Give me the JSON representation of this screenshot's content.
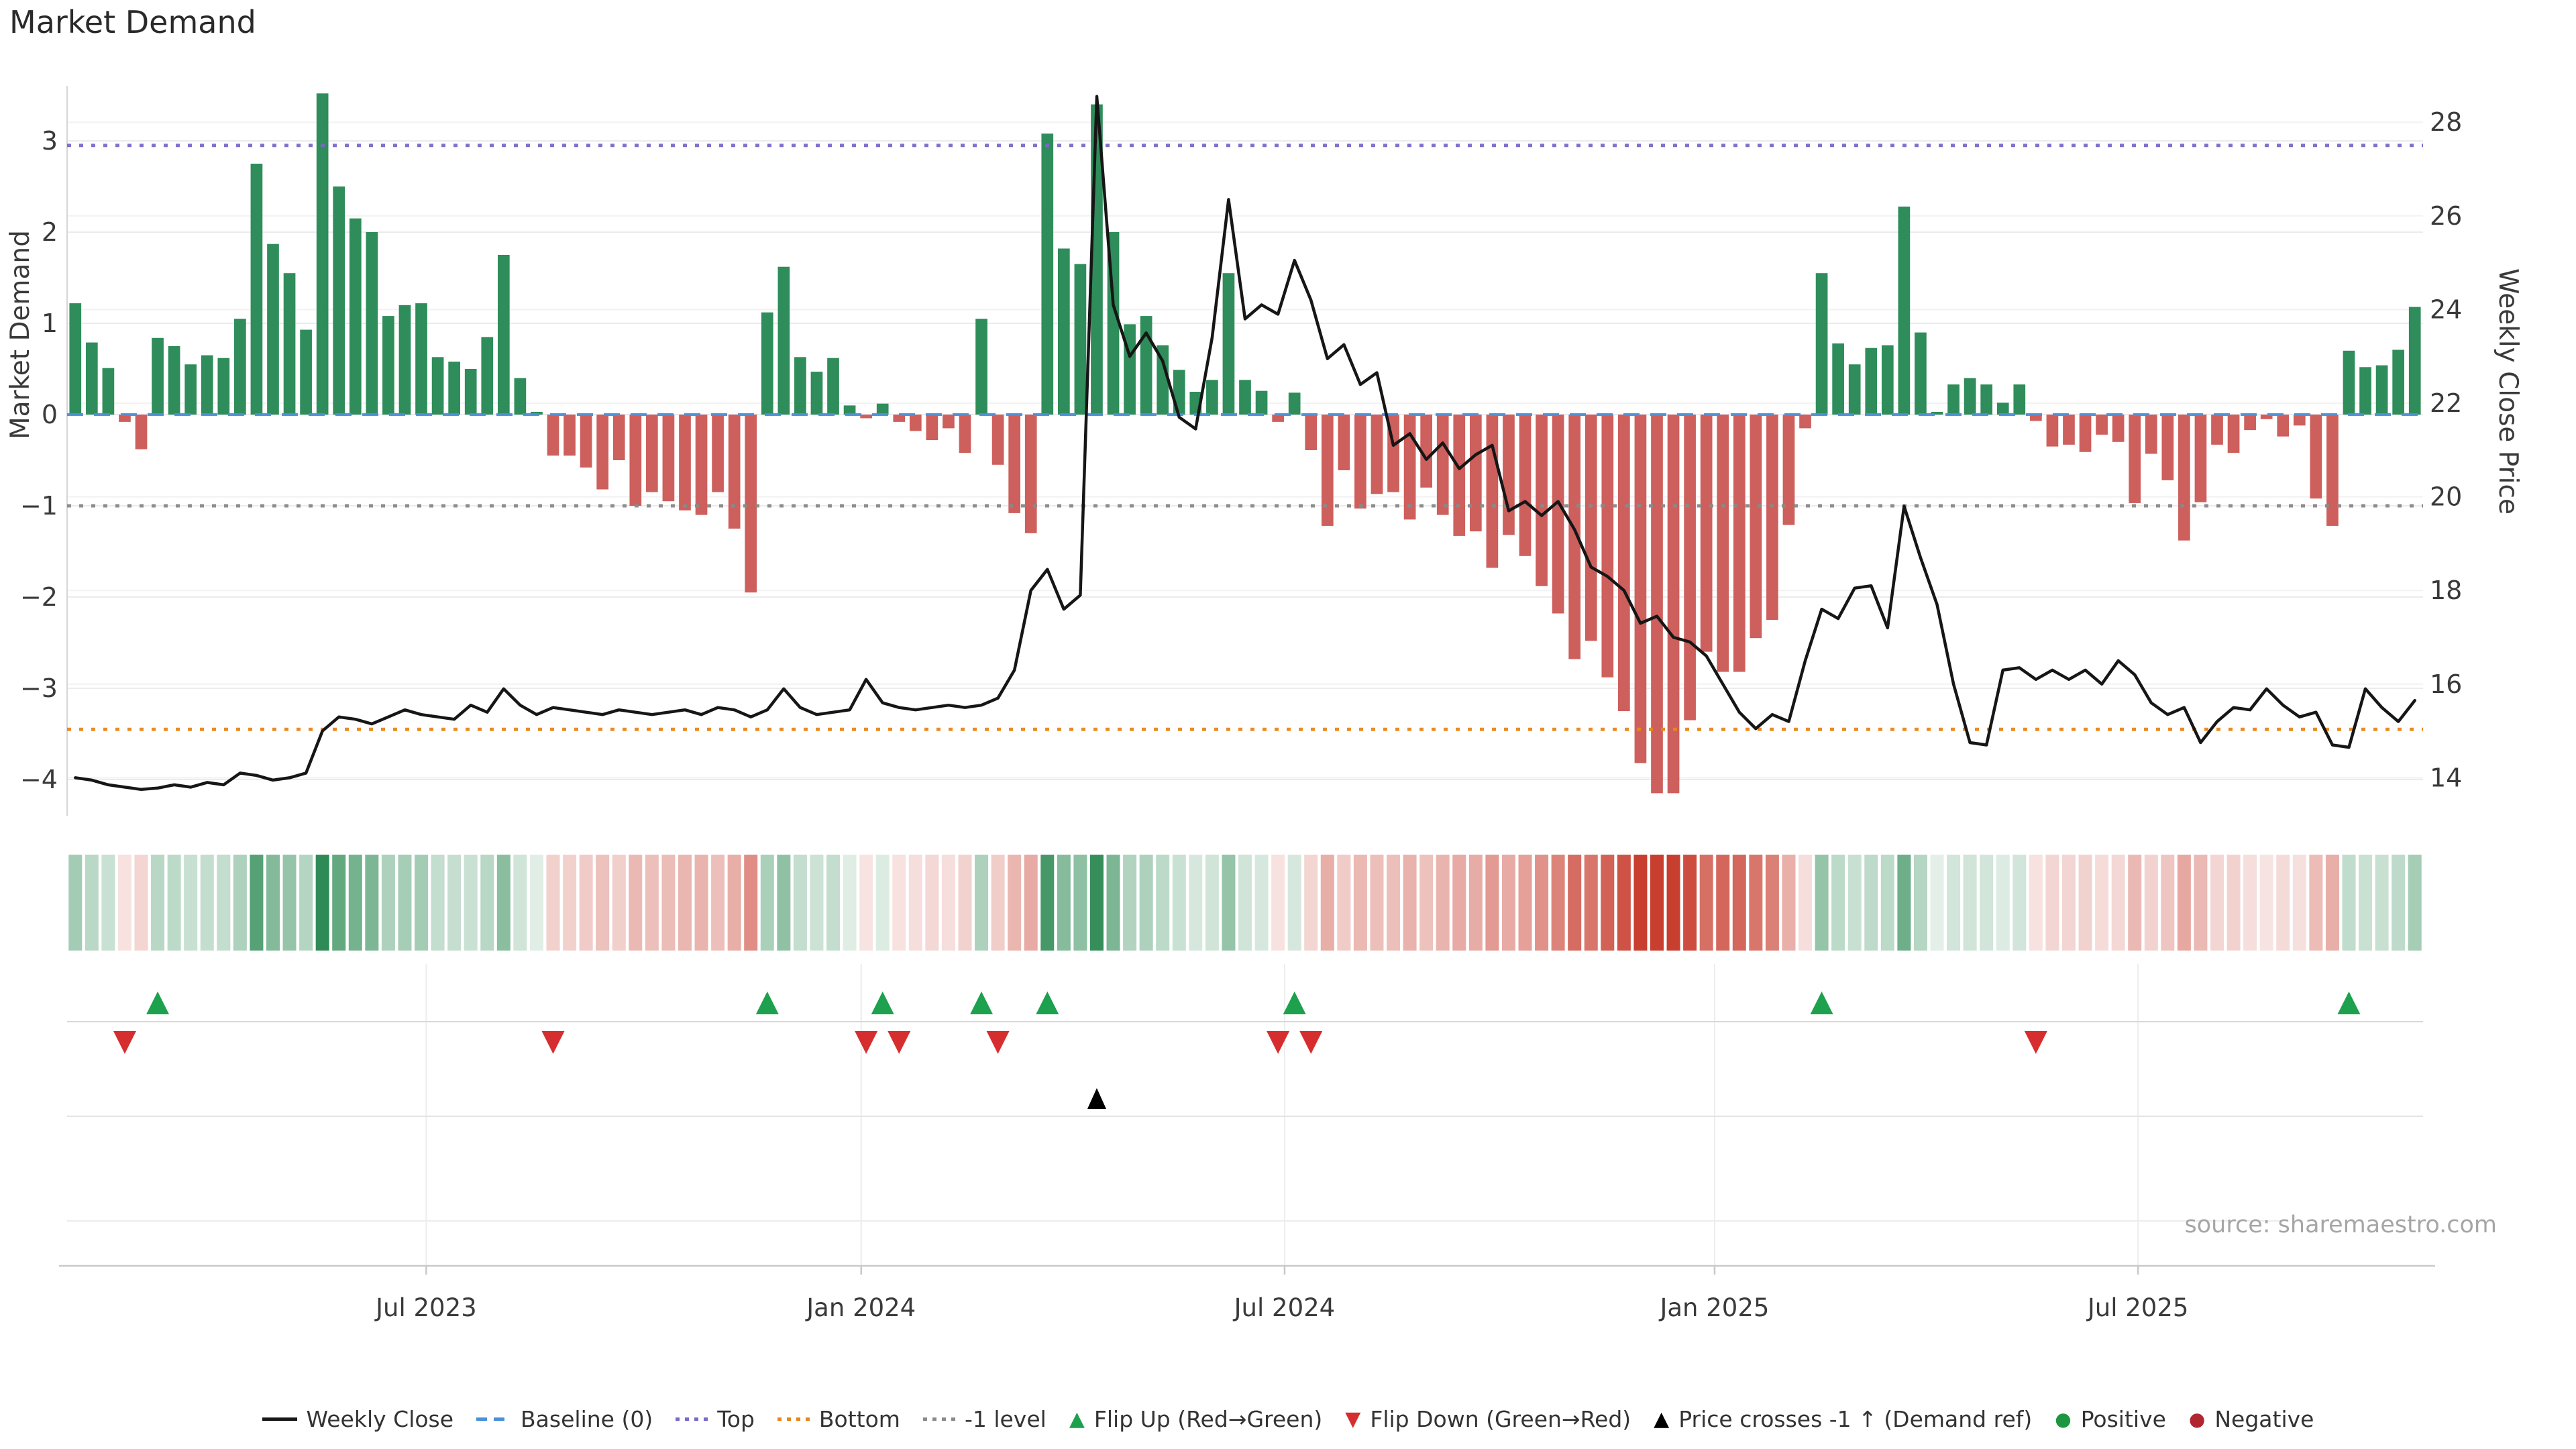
{
  "title": "Market Demand",
  "source": "source: sharemaestro.com",
  "chart_data": {
    "type": "bar",
    "subtype": "combo-bar-line-heatmap",
    "n_points": 143,
    "x_unit": "week",
    "left_axis": {
      "title": "Market Demand",
      "ticks": [
        3,
        2,
        1,
        0,
        -1,
        -2,
        -3,
        -4
      ],
      "range": [
        -4.4,
        3.6
      ]
    },
    "right_axis": {
      "title": "Weekly Close Price",
      "ticks": [
        28,
        26,
        24,
        22,
        20,
        18,
        16,
        14
      ],
      "range": [
        13.2,
        28.8
      ]
    },
    "x_axis": {
      "ticks": [
        {
          "label": "Jul 2023",
          "pos": 21.3
        },
        {
          "label": "Jan 2024",
          "pos": 47.7
        },
        {
          "label": "Jul 2024",
          "pos": 73.4
        },
        {
          "label": "Jan 2025",
          "pos": 99.5
        },
        {
          "label": "Jul 2025",
          "pos": 125.2
        }
      ]
    },
    "series": [
      {
        "name": "Market Demand",
        "type": "bar",
        "axis": "left",
        "positive_color": "#2e8d5a",
        "negative_color": "#cd5f5c",
        "values": [
          1.22,
          0.79,
          0.51,
          -0.08,
          -0.38,
          0.84,
          0.75,
          0.55,
          0.65,
          0.62,
          1.05,
          2.75,
          1.87,
          1.55,
          0.93,
          3.52,
          2.5,
          2.15,
          2.0,
          1.08,
          1.2,
          1.22,
          0.63,
          0.58,
          0.5,
          0.85,
          1.75,
          0.4,
          0.03,
          -0.45,
          -0.45,
          -0.58,
          -0.82,
          -0.5,
          -1.0,
          -0.85,
          -0.95,
          -1.05,
          -1.1,
          -0.85,
          -1.25,
          -1.95,
          1.12,
          1.62,
          0.63,
          0.47,
          0.62,
          0.1,
          -0.04,
          0.12,
          -0.08,
          -0.18,
          -0.28,
          -0.15,
          -0.42,
          1.05,
          -0.55,
          -1.08,
          -1.3,
          3.08,
          1.82,
          1.65,
          3.4,
          2.0,
          0.99,
          1.08,
          0.76,
          0.49,
          0.25,
          0.38,
          1.55,
          0.38,
          0.26,
          -0.08,
          0.24,
          -0.39,
          -1.22,
          -0.61,
          -1.03,
          -0.87,
          -0.85,
          -1.15,
          -0.8,
          -1.1,
          -1.33,
          -1.28,
          -1.68,
          -1.32,
          -1.55,
          -1.88,
          -2.18,
          -2.68,
          -2.48,
          -2.88,
          -3.25,
          -3.82,
          -4.15,
          -4.15,
          -3.35,
          -2.6,
          -2.82,
          -2.82,
          -2.45,
          -2.25,
          -1.21,
          -0.15,
          1.55,
          0.78,
          0.55,
          0.73,
          0.76,
          2.28,
          0.9,
          0.02,
          0.33,
          0.4,
          0.33,
          0.13,
          0.33,
          -0.07,
          -0.35,
          -0.33,
          -0.41,
          -0.22,
          -0.3,
          -0.97,
          -0.43,
          -0.72,
          -1.38,
          -0.96,
          -0.33,
          -0.42,
          -0.17,
          -0.05,
          -0.24,
          -0.12,
          -0.92,
          -1.22,
          0.7,
          0.52,
          0.54,
          0.71,
          1.18
        ]
      },
      {
        "name": "Weekly Close",
        "type": "line",
        "axis": "right",
        "color": "#161616",
        "values": [
          14.0,
          13.95,
          13.85,
          13.8,
          13.75,
          13.78,
          13.85,
          13.8,
          13.9,
          13.85,
          14.1,
          14.05,
          13.95,
          14.0,
          14.1,
          15.0,
          15.3,
          15.25,
          15.15,
          15.3,
          15.45,
          15.35,
          15.3,
          15.25,
          15.55,
          15.4,
          15.9,
          15.55,
          15.35,
          15.5,
          15.45,
          15.4,
          15.35,
          15.45,
          15.4,
          15.35,
          15.4,
          15.45,
          15.35,
          15.5,
          15.45,
          15.3,
          15.45,
          15.9,
          15.5,
          15.35,
          15.4,
          15.45,
          16.1,
          15.6,
          15.5,
          15.45,
          15.5,
          15.55,
          15.5,
          15.55,
          15.7,
          16.3,
          18.0,
          18.45,
          17.6,
          17.9,
          28.55,
          24.1,
          23.0,
          23.5,
          22.9,
          21.7,
          21.45,
          23.4,
          26.35,
          23.8,
          24.1,
          23.9,
          25.05,
          24.2,
          22.95,
          23.25,
          22.4,
          22.65,
          21.1,
          21.35,
          20.8,
          21.15,
          20.6,
          20.9,
          21.1,
          19.7,
          19.9,
          19.6,
          19.9,
          19.3,
          18.5,
          18.3,
          18.0,
          17.3,
          17.45,
          17.0,
          16.9,
          16.6,
          16.0,
          15.4,
          15.05,
          15.35,
          15.2,
          16.5,
          17.6,
          17.4,
          18.05,
          18.1,
          17.2,
          19.8,
          18.7,
          17.7,
          16.0,
          14.75,
          14.7,
          16.3,
          16.35,
          16.1,
          16.3,
          16.1,
          16.3,
          16.0,
          16.5,
          16.2,
          15.6,
          15.35,
          15.5,
          14.75,
          15.2,
          15.5,
          15.45,
          15.9,
          15.55,
          15.3,
          15.4,
          14.7,
          14.65,
          15.9,
          15.5,
          15.2,
          15.65
        ]
      }
    ],
    "reference_lines": [
      {
        "name": "Baseline (0)",
        "axis": "left",
        "value": 0,
        "color": "#4a90d9",
        "style": "dashed"
      },
      {
        "name": "Top",
        "axis": "left",
        "value": 2.95,
        "color": "#7b68c8",
        "style": "dotted"
      },
      {
        "name": "Bottom",
        "axis": "left",
        "value": -3.45,
        "color": "#e8861a",
        "style": "dotted"
      },
      {
        "name": "-1 level",
        "axis": "left",
        "value": -1,
        "color": "#8a8a8a",
        "style": "dotted"
      }
    ],
    "markers": {
      "flip_up": {
        "label": "Flip Up (Red→Green)",
        "color": "#1da14e",
        "indices": [
          5,
          42,
          49,
          55,
          59,
          74,
          106,
          138
        ]
      },
      "flip_down": {
        "label": "Flip Down (Green→Red)",
        "color": "#d62e2e",
        "indices": [
          3,
          29,
          48,
          50,
          56,
          73,
          75,
          119
        ]
      },
      "price_cross": {
        "label": "Price crosses -1 ↑ (Demand ref)",
        "color": "#000000",
        "indices": [
          62
        ]
      }
    },
    "heatmap": {
      "derived_from": "Market Demand",
      "positive_color": "#27864e",
      "negative_color": "#c83e2f"
    }
  },
  "legend": {
    "items": [
      {
        "icon": "line",
        "label": "Weekly Close",
        "color": "#161616"
      },
      {
        "icon": "dashes",
        "label": "Baseline (0)",
        "color": "#4a90d9"
      },
      {
        "icon": "dots",
        "label": "Top",
        "color": "#7b68c8"
      },
      {
        "icon": "dots",
        "label": "Bottom",
        "color": "#e8861a"
      },
      {
        "icon": "dots",
        "label": "-1 level",
        "color": "#8a8a8a"
      },
      {
        "icon": "triangle-up",
        "label": "Flip Up (Red→Green)",
        "color": "#1da14e"
      },
      {
        "icon": "triangle-down",
        "label": "Flip Down (Green→Red)",
        "color": "#d62e2e"
      },
      {
        "icon": "triangle-up",
        "label": "Price crosses -1 ↑ (Demand ref)",
        "color": "#000000"
      },
      {
        "icon": "circle",
        "label": "Positive",
        "color": "#1e9641"
      },
      {
        "icon": "circle",
        "label": "Negative",
        "color": "#b02730"
      }
    ]
  }
}
